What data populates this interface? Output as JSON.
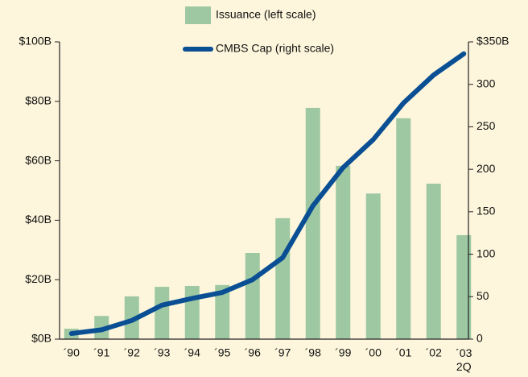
{
  "chart_data": {
    "type": "bar_line",
    "categories": [
      "´90",
      "´91",
      "´92",
      "´93",
      "´94",
      "´95",
      "´96",
      "´97",
      "´98",
      "´99",
      "´00",
      "´01",
      "´02",
      "´03 2Q"
    ],
    "series": [
      {
        "name": "Issuance (left scale)",
        "type": "bar",
        "color": "#9dc8a2",
        "axis": "y",
        "values": [
          3.5,
          7.8,
          14.4,
          17.6,
          17.9,
          18.2,
          29,
          40.7,
          77.8,
          58.3,
          49,
          74.3,
          52.3,
          35
        ]
      },
      {
        "name": "CMBS Cap (right scale)",
        "type": "line",
        "color": "#0a4f94",
        "axis": "y2",
        "values": [
          6.6,
          11,
          22,
          40,
          48,
          55,
          70,
          96,
          157,
          202,
          235,
          278,
          311,
          336
        ]
      }
    ],
    "ylim": [
      0,
      100
    ],
    "yticks": [
      {
        "value": 0,
        "label": "$0B"
      },
      {
        "value": 20,
        "label": "$20B"
      },
      {
        "value": 40,
        "label": "$40B"
      },
      {
        "value": 60,
        "label": "$60B"
      },
      {
        "value": 80,
        "label": "$80B"
      },
      {
        "value": 100,
        "label": "$100B"
      }
    ],
    "y2lim": [
      0,
      350
    ],
    "y2ticks": [
      0,
      50,
      100,
      150,
      200,
      250,
      300,
      {
        "value": 350,
        "label": "$350B"
      }
    ],
    "grid": false
  }
}
